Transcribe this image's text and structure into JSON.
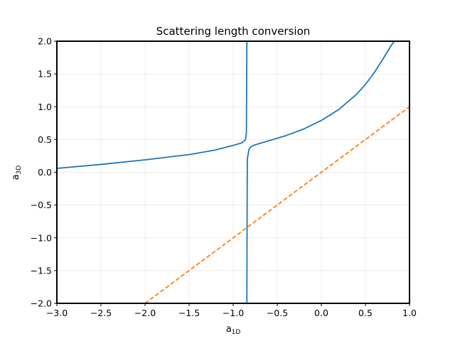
{
  "chart_data": {
    "type": "line",
    "title": "Scattering length conversion",
    "xlabel": {
      "main": "a",
      "sub": "1D"
    },
    "ylabel": {
      "main": "a",
      "sub": "3D"
    },
    "xlim": [
      -3.0,
      1.0
    ],
    "ylim": [
      -2.0,
      2.0
    ],
    "xticks": [
      -3.0,
      -2.5,
      -2.0,
      -1.5,
      -1.0,
      -0.5,
      0.0,
      0.5,
      1.0
    ],
    "xtick_labels": [
      "−3.0",
      "−2.5",
      "−2.0",
      "−1.5",
      "−1.0",
      "−0.5",
      "0.0",
      "0.5",
      "1.0"
    ],
    "yticks": [
      -2.0,
      -1.5,
      -1.0,
      -0.5,
      0.0,
      0.5,
      1.0,
      1.5,
      2.0
    ],
    "ytick_labels": [
      "−2.0",
      "−1.5",
      "−1.0",
      "−0.5",
      "0.0",
      "0.5",
      "1.0",
      "1.5",
      "2.0"
    ],
    "grid": true,
    "series": [
      {
        "style": "solid",
        "color": "#1f77b4",
        "x": [
          -3.0,
          -2.5,
          -2.0,
          -1.5,
          -1.2,
          -1.0,
          -0.9,
          -0.86,
          -0.85,
          -0.845
        ],
        "y": [
          0.06,
          0.12,
          0.19,
          0.27,
          0.34,
          0.41,
          0.45,
          0.5,
          0.6,
          2.0
        ]
      },
      {
        "style": "solid",
        "color": "#1f77b4",
        "x": [
          -0.845,
          -0.84,
          -0.82,
          -0.8,
          -0.75,
          -0.6,
          -0.4,
          -0.2,
          0.0,
          0.2,
          0.4,
          0.5,
          0.6,
          0.7,
          0.75,
          0.8,
          0.83
        ],
        "y": [
          -2.0,
          0.2,
          0.35,
          0.39,
          0.42,
          0.48,
          0.56,
          0.66,
          0.79,
          0.96,
          1.19,
          1.34,
          1.52,
          1.73,
          1.84,
          1.95,
          2.0
        ]
      },
      {
        "style": "dashed",
        "color": "#ff7f0e",
        "x": [
          -2.0,
          1.0
        ],
        "y": [
          -2.0,
          1.0
        ]
      }
    ]
  }
}
